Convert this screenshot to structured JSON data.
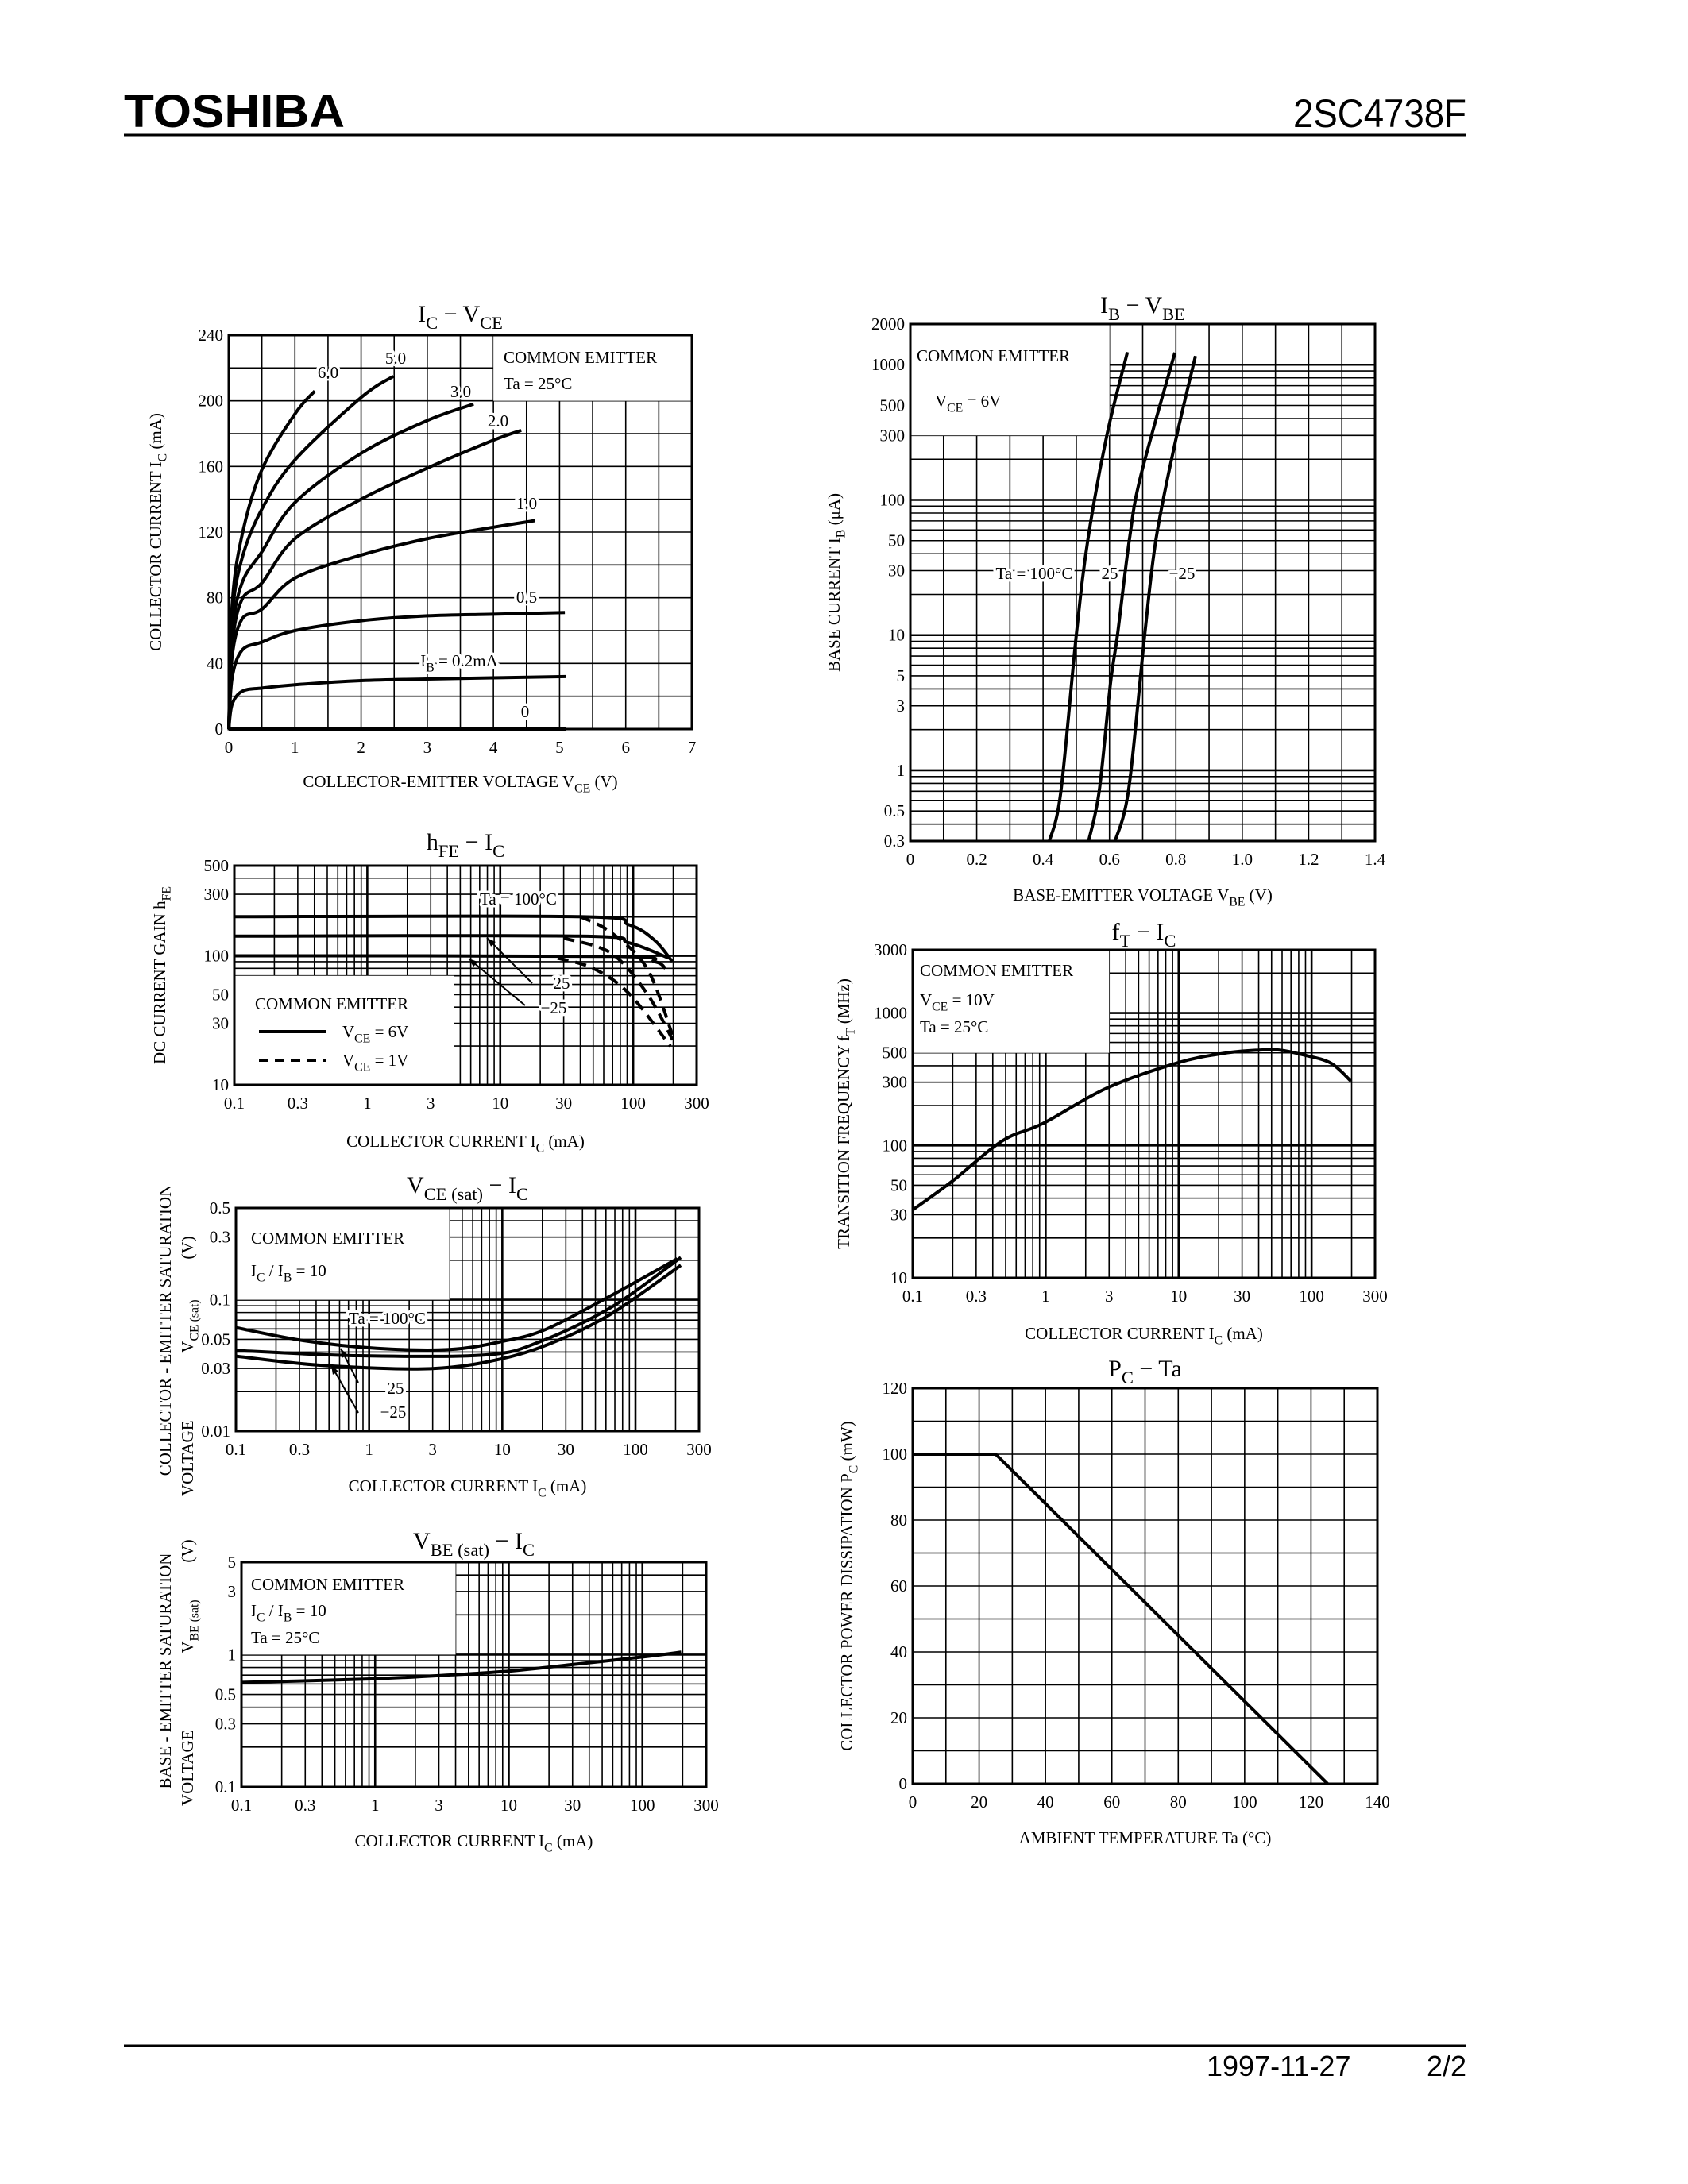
{
  "header": {
    "brand": "TOSHIBA",
    "part_number": "2SC4738F"
  },
  "footer": {
    "date": "1997-11-27",
    "page": "2/2"
  },
  "chart_data": [
    {
      "type": "line",
      "title": [
        "I",
        "C",
        " − V",
        "CE"
      ],
      "xlabel": [
        "COLLECTOR-EMITTER VOLTAGE   V",
        "CE",
        "   (V)"
      ],
      "ylabel": [
        [
          "COLLECTOR CURRENT   I",
          "C",
          "   (mA)"
        ]
      ],
      "xscale": "linear",
      "yscale": "linear",
      "xlim": [
        0,
        7
      ],
      "ylim": [
        0,
        240
      ],
      "grid": true,
      "xticks": [
        "0",
        "1",
        "2",
        "3",
        "4",
        "5",
        "6",
        "7"
      ],
      "yticks": [
        "0",
        "40",
        "80",
        "120",
        "160",
        "200",
        "240"
      ],
      "annotations": [
        [
          "COMMON EMITTER"
        ],
        [
          "Ta = 25°C"
        ]
      ],
      "series": [
        {
          "name": [
            "6.0"
          ],
          "points": [
            [
              0,
              0
            ],
            [
              0.05,
              75
            ],
            [
              0.2,
              118
            ],
            [
              0.5,
              158
            ],
            [
              1.0,
              192
            ],
            [
              1.3,
              206
            ]
          ]
        },
        {
          "name": [
            "5.0"
          ],
          "points": [
            [
              0,
              0
            ],
            [
              0.05,
              68
            ],
            [
              0.2,
              104
            ],
            [
              0.5,
              134
            ],
            [
              1.0,
              164
            ],
            [
              2.0,
              202
            ],
            [
              2.49,
              215
            ]
          ]
        },
        {
          "name": [
            "3.0"
          ],
          "points": [
            [
              0,
              0
            ],
            [
              0.05,
              58
            ],
            [
              0.2,
              89
            ],
            [
              0.5,
              108
            ],
            [
              1.0,
              138
            ],
            [
              2.0,
              168
            ],
            [
              3.0,
              188
            ],
            [
              3.7,
              198
            ]
          ]
        },
        {
          "name": [
            "2.0"
          ],
          "points": [
            [
              0,
              0
            ],
            [
              0.05,
              51
            ],
            [
              0.2,
              79
            ],
            [
              0.5,
              89
            ],
            [
              1.0,
              116
            ],
            [
              2.0,
              140
            ],
            [
              3.0,
              159
            ],
            [
              4.0,
              176
            ],
            [
              4.42,
              182
            ]
          ]
        },
        {
          "name": [
            "1.0"
          ],
          "points": [
            [
              0,
              0
            ],
            [
              0.05,
              44
            ],
            [
              0.2,
              67
            ],
            [
              0.5,
              73
            ],
            [
              1.0,
              92
            ],
            [
              2.0,
              106
            ],
            [
              3.0,
              116
            ],
            [
              4.0,
              123
            ],
            [
              4.63,
              127
            ]
          ]
        },
        {
          "name": [
            "0.5"
          ],
          "points": [
            [
              0,
              0
            ],
            [
              0.05,
              31
            ],
            [
              0.2,
              48
            ],
            [
              0.5,
              53
            ],
            [
              1.0,
              60
            ],
            [
              2.0,
              66
            ],
            [
              3.0,
              69
            ],
            [
              4.0,
              70
            ],
            [
              5.08,
              71
            ]
          ]
        },
        {
          "name": [
            "I",
            "B",
            " = 0.2mA"
          ],
          "points": [
            [
              0,
              0
            ],
            [
              0.05,
              15
            ],
            [
              0.2,
              23
            ],
            [
              0.5,
              25
            ],
            [
              1.0,
              27
            ],
            [
              2.0,
              29.5
            ],
            [
              3.0,
              30.5
            ],
            [
              5.1,
              32
            ]
          ]
        },
        {
          "name": [
            "0"
          ],
          "points": [
            [
              0,
              0
            ],
            [
              5.1,
              0
            ]
          ]
        }
      ]
    },
    {
      "type": "line",
      "title": [
        "I",
        "B",
        " − V",
        "BE"
      ],
      "xlabel": [
        "BASE-EMITTER VOLTAGE   V",
        "BE",
        "   (V)"
      ],
      "ylabel": [
        [
          "BASE CURRENT   I",
          "B",
          "   (μA)"
        ]
      ],
      "xscale": "linear",
      "yscale": "log",
      "xlim": [
        0,
        1.4
      ],
      "ylim": [
        0.3,
        2000
      ],
      "grid": true,
      "xticks": [
        "0",
        "0.2",
        "0.4",
        "0.6",
        "0.8",
        "1.0",
        "1.2",
        "1.4"
      ],
      "yticks": [
        "0.3",
        "0.5",
        "1",
        "3",
        "5",
        "10",
        "30",
        "50",
        "100",
        "300",
        "500",
        "1000",
        "2000"
      ],
      "annotations": [
        [
          "COMMON EMITTER"
        ],
        [
          "V",
          "CE",
          " = 6V"
        ]
      ],
      "series": [
        {
          "name": [
            "Ta = 100°C"
          ],
          "points": [
            [
              0.419,
              0.3
            ],
            [
              0.453,
              0.68
            ],
            [
              0.5,
              10
            ],
            [
              0.535,
              51
            ],
            [
              0.592,
              300
            ],
            [
              0.654,
              1240
            ]
          ]
        },
        {
          "name": [
            "25"
          ],
          "points": [
            [
              0.537,
              0.3
            ],
            [
              0.569,
              0.7
            ],
            [
              0.603,
              4.4
            ],
            [
              0.624,
              10
            ],
            [
              0.66,
              51
            ],
            [
              0.694,
              150
            ],
            [
              0.797,
              1230
            ]
          ]
        },
        {
          "name": [
            "−25"
          ],
          "points": [
            [
              0.617,
              0.3
            ],
            [
              0.658,
              0.73
            ],
            [
              0.706,
              10
            ],
            [
              0.74,
              51
            ],
            [
              0.797,
              260
            ],
            [
              0.859,
              1160
            ]
          ]
        }
      ]
    },
    {
      "type": "line",
      "title": [
        "h",
        "FE",
        " − I",
        "C"
      ],
      "xlabel": [
        "COLLECTOR CURRENT   I",
        "C",
        "   (mA)"
      ],
      "ylabel": [
        [
          "DC CURRENT GAIN  h",
          "FE"
        ]
      ],
      "xscale": "log",
      "yscale": "log",
      "xlim": [
        0.1,
        300
      ],
      "ylim": [
        10,
        500
      ],
      "grid": true,
      "xticks": [
        "0.1",
        "0.3",
        "1",
        "3",
        "10",
        "30",
        "100",
        "300"
      ],
      "yticks": [
        "10",
        "30",
        "50",
        "100",
        "300",
        "500"
      ],
      "annotations": [
        [
          "COMMON EMITTER"
        ],
        [
          "Ta = 100°C"
        ],
        [
          "25"
        ],
        [
          "−25"
        ]
      ],
      "legend": [
        {
          "label": [
            "V",
            "CE",
            " = 6V"
          ],
          "style": "solid"
        },
        {
          "label": [
            "V",
            "CE",
            " = 1V"
          ],
          "style": "dashed"
        }
      ],
      "series": [
        {
          "ta": "100°C",
          "vce": "6V",
          "style": "solid",
          "points": [
            [
              0.1,
              201
            ],
            [
              40,
              201
            ],
            [
              93,
              174
            ],
            [
              145,
              132
            ],
            [
              197,
              90
            ]
          ]
        },
        {
          "ta": "25°C",
          "vce": "6V",
          "style": "solid",
          "points": [
            [
              0.1,
              142
            ],
            [
              40,
              142
            ],
            [
              93,
              126
            ],
            [
              185,
              96
            ]
          ]
        },
        {
          "ta": "-25°C",
          "vce": "6V",
          "style": "solid",
          "points": [
            [
              0.1,
              100
            ],
            [
              68,
              99
            ],
            [
              145,
              90
            ],
            [
              174,
              80
            ]
          ]
        },
        {
          "ta": "100°C",
          "vce": "1V",
          "style": "dashed",
          "points": [
            [
              40,
              201
            ],
            [
              68,
              152
            ],
            [
              127,
              80
            ],
            [
              197,
              24.5
            ]
          ]
        },
        {
          "ta": "25°C",
          "vce": "1V",
          "style": "dashed",
          "points": [
            [
              30,
              137
            ],
            [
              68,
              105
            ],
            [
              127,
              51
            ],
            [
              204,
              21
            ]
          ]
        },
        {
          "ta": "-25°C",
          "vce": "1V",
          "style": "dashed",
          "points": [
            [
              27,
              96
            ],
            [
              50,
              80
            ],
            [
              93,
              51
            ],
            [
              190,
              20
            ]
          ]
        }
      ]
    },
    {
      "type": "line",
      "title": [
        "f",
        "T",
        " − I",
        "C"
      ],
      "xlabel": [
        "COLLECTOR CURRENT   I",
        "C",
        "   (mA)"
      ],
      "ylabel": [
        [
          "TRANSITION FREQUENCY   f",
          "T",
          "   (MHz)"
        ]
      ],
      "xscale": "log",
      "yscale": "log",
      "xlim": [
        0.1,
        300
      ],
      "ylim": [
        10,
        3000
      ],
      "grid": true,
      "xticks": [
        "0.1",
        "0.3",
        "1",
        "3",
        "10",
        "30",
        "100",
        "300"
      ],
      "yticks": [
        "10",
        "30",
        "50",
        "100",
        "300",
        "500",
        "1000",
        "3000"
      ],
      "annotations": [
        [
          "COMMON EMITTER"
        ],
        [
          "V",
          "CE",
          " = 10V"
        ],
        [
          "Ta = 25°C"
        ]
      ],
      "series": [
        {
          "points": [
            [
              0.1,
              32.6
            ],
            [
              0.2,
              54
            ],
            [
              0.47,
              108
            ],
            [
              0.96,
              147
            ],
            [
              2.86,
              270
            ],
            [
              9.7,
              419
            ],
            [
              22,
              497
            ],
            [
              40,
              525
            ],
            [
              58,
              525
            ],
            [
              86,
              484
            ],
            [
              139,
              419
            ],
            [
              198,
              305
            ]
          ]
        }
      ]
    },
    {
      "type": "line",
      "title": [
        "V",
        "CE (sat)",
        " − I",
        "C"
      ],
      "xlabel": [
        "COLLECTOR CURRENT   I",
        "C",
        "   (mA)"
      ],
      "ylabel": [
        [
          "COLLECTOR - EMITTER SATURATION"
        ],
        [
          "(V)"
        ],
        [
          "V",
          "CE (sat)"
        ],
        [
          "VOLTAGE"
        ]
      ],
      "xscale": "log",
      "yscale": "log",
      "xlim": [
        0.1,
        300
      ],
      "ylim": [
        0.01,
        0.5
      ],
      "grid": true,
      "xticks": [
        "0.1",
        "0.3",
        "1",
        "3",
        "10",
        "30",
        "100",
        "300"
      ],
      "yticks": [
        "0.01",
        "0.03",
        "0.05",
        "0.1",
        "0.3",
        "0.5"
      ],
      "annotations": [
        [
          "COMMON EMITTER"
        ],
        [
          "I",
          "C",
          " / I",
          "B",
          " = 10"
        ]
      ],
      "series": [
        {
          "name": [
            "Ta = 100°C"
          ],
          "points": [
            [
              0.1,
              0.0614
            ],
            [
              0.32,
              0.0489
            ],
            [
              1.14,
              0.0427
            ],
            [
              4,
              0.0418
            ],
            [
              10.2,
              0.0484
            ],
            [
              21.6,
              0.06
            ],
            [
              66.7,
              0.1087
            ],
            [
              206,
              0.2056
            ]
          ]
        },
        {
          "name": [
            "25"
          ],
          "points": [
            [
              0.1,
              0.0411
            ],
            [
              0.83,
              0.0375
            ],
            [
              7.4,
              0.038
            ],
            [
              19,
              0.0478
            ],
            [
              66.7,
              0.0885
            ],
            [
              219,
              0.21
            ]
          ]
        },
        {
          "name": [
            "−25"
          ],
          "points": [
            [
              0.1,
              0.0372
            ],
            [
              0.44,
              0.0317
            ],
            [
              2.9,
              0.0299
            ],
            [
              10.2,
              0.0358
            ],
            [
              26,
              0.0489
            ],
            [
              66.7,
              0.0789
            ],
            [
              219,
              0.183
            ]
          ]
        }
      ]
    },
    {
      "type": "line",
      "title": [
        "V",
        "BE (sat)",
        " − I",
        "C"
      ],
      "xlabel": [
        "COLLECTOR CURRENT   I",
        "C",
        "   (mA)"
      ],
      "ylabel": [
        [
          "BASE - EMITTER SATURATION"
        ],
        [
          "(V)"
        ],
        [
          "V",
          "BE (sat)"
        ],
        [
          "VOLTAGE"
        ]
      ],
      "xscale": "log",
      "yscale": "log",
      "xlim": [
        0.1,
        300
      ],
      "ylim": [
        0.1,
        5
      ],
      "grid": true,
      "xticks": [
        "0.1",
        "0.3",
        "1",
        "3",
        "10",
        "30",
        "100",
        "300"
      ],
      "yticks": [
        "0.1",
        "0.3",
        "0.5",
        "1",
        "3",
        "5"
      ],
      "annotations": [
        [
          "COMMON EMITTER"
        ],
        [
          "I",
          "C",
          " / I",
          "B",
          " = 10"
        ],
        [
          "Ta = 25°C"
        ]
      ],
      "series": [
        {
          "points": [
            [
              0.1,
              0.617
            ],
            [
              0.93,
              0.655
            ],
            [
              4.05,
              0.707
            ],
            [
              9.9,
              0.75
            ],
            [
              29.5,
              0.84
            ],
            [
              100,
              0.96
            ],
            [
              195,
              1.045
            ]
          ]
        }
      ]
    },
    {
      "type": "line",
      "title": [
        "P",
        "C",
        " − Ta"
      ],
      "xlabel": [
        "AMBIENT TEMPERATURE   Ta   (°C)"
      ],
      "ylabel": [
        [
          "COLLECTOR POWER DISSIPATION   P",
          "C",
          "   (mW)"
        ]
      ],
      "xscale": "linear",
      "yscale": "linear",
      "xlim": [
        0,
        140
      ],
      "ylim": [
        0,
        120
      ],
      "grid": true,
      "xticks": [
        "0",
        "20",
        "40",
        "60",
        "80",
        "100",
        "120",
        "140"
      ],
      "yticks": [
        "0",
        "20",
        "40",
        "60",
        "80",
        "100",
        "120"
      ],
      "series": [
        {
          "points": [
            [
              0,
              100
            ],
            [
              25,
              100
            ],
            [
              125,
              0
            ]
          ]
        }
      ]
    }
  ]
}
